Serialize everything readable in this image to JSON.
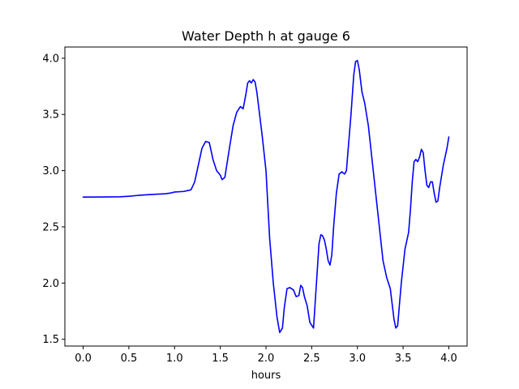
{
  "chart_data": {
    "type": "line",
    "title": "Water Depth h at gauge 6",
    "xlabel": "hours",
    "ylabel": "",
    "xlim": [
      -0.2,
      4.2
    ],
    "ylim": [
      1.44,
      4.1
    ],
    "xticks": [
      0.0,
      0.5,
      1.0,
      1.5,
      2.0,
      2.5,
      3.0,
      3.5,
      4.0
    ],
    "xtick_labels": [
      "0.0",
      "0.5",
      "1.0",
      "1.5",
      "2.0",
      "2.5",
      "3.0",
      "3.5",
      "4.0"
    ],
    "yticks": [
      1.5,
      2.0,
      2.5,
      3.0,
      3.5,
      4.0
    ],
    "ytick_labels": [
      "1.5",
      "2.0",
      "2.5",
      "3.0",
      "3.5",
      "4.0"
    ],
    "grid": false,
    "legend": "none",
    "colors": {
      "line": "#0000ff",
      "axes": "#000000",
      "background": "#ffffff"
    },
    "series": [
      {
        "x": [
          0.0,
          0.2,
          0.4,
          0.5,
          0.6,
          0.7,
          0.8,
          0.9,
          0.95,
          1.0,
          1.1,
          1.18,
          1.22,
          1.26,
          1.3,
          1.34,
          1.38,
          1.42,
          1.46,
          1.5,
          1.52,
          1.55,
          1.6,
          1.64,
          1.68,
          1.72,
          1.75,
          1.78,
          1.8,
          1.82,
          1.84,
          1.86,
          1.88,
          1.9,
          1.93,
          1.96,
          2.0,
          2.04,
          2.08,
          2.12,
          2.15,
          2.18,
          2.2,
          2.23,
          2.26,
          2.3,
          2.33,
          2.36,
          2.38,
          2.4,
          2.42,
          2.45,
          2.48,
          2.52,
          2.56,
          2.58,
          2.6,
          2.62,
          2.64,
          2.66,
          2.68,
          2.7,
          2.72,
          2.74,
          2.77,
          2.8,
          2.83,
          2.86,
          2.88,
          2.9,
          2.93,
          2.96,
          2.98,
          3.0,
          3.02,
          3.05,
          3.08,
          3.12,
          3.16,
          3.2,
          3.24,
          3.28,
          3.32,
          3.36,
          3.4,
          3.42,
          3.44,
          3.48,
          3.52,
          3.56,
          3.58,
          3.6,
          3.62,
          3.64,
          3.66,
          3.68,
          3.7,
          3.72,
          3.74,
          3.76,
          3.78,
          3.8,
          3.82,
          3.84,
          3.86,
          3.88,
          3.9,
          3.94,
          3.98,
          4.0
        ],
        "y": [
          2.765,
          2.766,
          2.768,
          2.772,
          2.78,
          2.786,
          2.79,
          2.795,
          2.8,
          2.81,
          2.815,
          2.83,
          2.9,
          3.05,
          3.2,
          3.26,
          3.25,
          3.1,
          3.0,
          2.96,
          2.92,
          2.94,
          3.2,
          3.4,
          3.52,
          3.57,
          3.55,
          3.68,
          3.78,
          3.8,
          3.78,
          3.81,
          3.79,
          3.7,
          3.5,
          3.3,
          3.0,
          2.4,
          2.0,
          1.7,
          1.56,
          1.6,
          1.78,
          1.95,
          1.96,
          1.94,
          1.88,
          1.89,
          1.98,
          1.96,
          1.88,
          1.8,
          1.65,
          1.6,
          2.1,
          2.35,
          2.43,
          2.42,
          2.38,
          2.3,
          2.2,
          2.16,
          2.25,
          2.5,
          2.8,
          2.97,
          2.99,
          2.97,
          3.0,
          3.2,
          3.5,
          3.85,
          3.97,
          3.98,
          3.9,
          3.7,
          3.6,
          3.4,
          3.1,
          2.8,
          2.5,
          2.2,
          2.05,
          1.95,
          1.68,
          1.6,
          1.62,
          2.0,
          2.3,
          2.45,
          2.65,
          2.9,
          3.08,
          3.1,
          3.08,
          3.12,
          3.19,
          3.16,
          3.0,
          2.87,
          2.85,
          2.9,
          2.9,
          2.8,
          2.72,
          2.73,
          2.85,
          3.05,
          3.2,
          3.3
        ]
      }
    ]
  }
}
